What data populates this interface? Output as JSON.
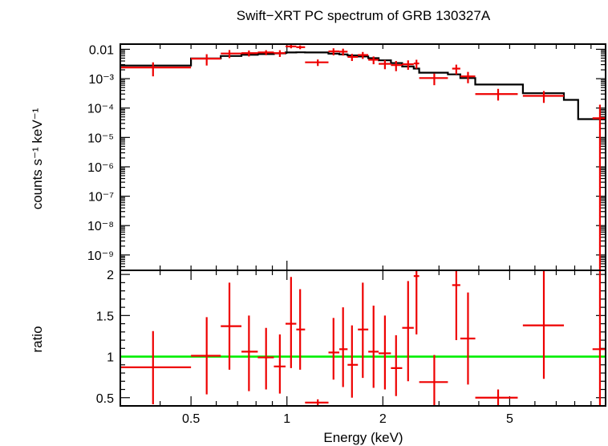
{
  "chart_data": [
    {
      "panel": "spectrum",
      "type": "scatter",
      "title": "Swift−XRT PC spectrum of GRB 130327A",
      "xlabel": "",
      "ylabel": "counts s⁻¹ keV⁻¹",
      "x_scale": "log",
      "y_scale": "log",
      "xlim": [
        0.3,
        10.0
      ],
      "ylim": [
        3e-10,
        0.015
      ],
      "y_ticks": [
        {
          "value": 0.01,
          "label": "0.01"
        },
        {
          "value": 0.001,
          "label": "10⁻³"
        },
        {
          "value": 0.0001,
          "label": "10⁻⁴"
        },
        {
          "value": 1e-05,
          "label": "10⁻⁵"
        },
        {
          "value": 1e-06,
          "label": "10⁻⁶"
        },
        {
          "value": 1e-07,
          "label": "10⁻⁷"
        },
        {
          "value": 1e-08,
          "label": "10⁻⁸"
        },
        {
          "value": 1e-09,
          "label": "10⁻⁹"
        }
      ],
      "series": [
        {
          "kind": "data",
          "color": "#ee0000",
          "points": [
            {
              "x": 0.38,
              "xlo": 0.3,
              "xhi": 0.5,
              "y": 0.0024,
              "ylo": 0.0012,
              "yhi": 0.0036
            },
            {
              "x": 0.56,
              "xlo": 0.5,
              "xhi": 0.62,
              "y": 0.0048,
              "ylo": 0.0028,
              "yhi": 0.0068
            },
            {
              "x": 0.66,
              "xlo": 0.62,
              "xhi": 0.72,
              "y": 0.0072,
              "ylo": 0.005,
              "yhi": 0.0094
            },
            {
              "x": 0.76,
              "xlo": 0.72,
              "xhi": 0.81,
              "y": 0.0074,
              "ylo": 0.0057,
              "yhi": 0.0091
            },
            {
              "x": 0.86,
              "xlo": 0.81,
              "xhi": 0.91,
              "y": 0.0078,
              "ylo": 0.0063,
              "yhi": 0.0093
            },
            {
              "x": 0.95,
              "xlo": 0.91,
              "xhi": 0.99,
              "y": 0.0074,
              "ylo": 0.0055,
              "yhi": 0.0093
            },
            {
              "x": 1.03,
              "xlo": 0.99,
              "xhi": 1.07,
              "y": 0.0125,
              "ylo": 0.0108,
              "yhi": 0.0142
            },
            {
              "x": 1.1,
              "xlo": 1.07,
              "xhi": 1.14,
              "y": 0.0118,
              "ylo": 0.0101,
              "yhi": 0.0135
            },
            {
              "x": 1.25,
              "xlo": 1.14,
              "xhi": 1.35,
              "y": 0.0036,
              "ylo": 0.0027,
              "yhi": 0.0045
            },
            {
              "x": 1.4,
              "xlo": 1.35,
              "xhi": 1.46,
              "y": 0.0085,
              "ylo": 0.0062,
              "yhi": 0.0108
            },
            {
              "x": 1.5,
              "xlo": 1.46,
              "xhi": 1.55,
              "y": 0.0083,
              "ylo": 0.0061,
              "yhi": 0.0105
            },
            {
              "x": 1.6,
              "xlo": 1.55,
              "xhi": 1.67,
              "y": 0.0055,
              "ylo": 0.004,
              "yhi": 0.007
            },
            {
              "x": 1.73,
              "xlo": 1.67,
              "xhi": 1.8,
              "y": 0.0064,
              "ylo": 0.0047,
              "yhi": 0.0081
            },
            {
              "x": 1.87,
              "xlo": 1.8,
              "xhi": 1.94,
              "y": 0.0044,
              "ylo": 0.0031,
              "yhi": 0.0057
            },
            {
              "x": 2.03,
              "xlo": 1.94,
              "xhi": 2.12,
              "y": 0.0032,
              "ylo": 0.0021,
              "yhi": 0.0043
            },
            {
              "x": 2.2,
              "xlo": 2.12,
              "xhi": 2.3,
              "y": 0.0029,
              "ylo": 0.0018,
              "yhi": 0.004
            },
            {
              "x": 2.4,
              "xlo": 2.3,
              "xhi": 2.5,
              "y": 0.0031,
              "ylo": 0.002,
              "yhi": 0.0042
            },
            {
              "x": 2.55,
              "xlo": 2.5,
              "xhi": 2.6,
              "y": 0.0033,
              "ylo": 0.0022,
              "yhi": 0.0044
            },
            {
              "x": 2.9,
              "xlo": 2.6,
              "xhi": 3.2,
              "y": 0.00105,
              "ylo": 0.0006,
              "yhi": 0.0015
            },
            {
              "x": 3.4,
              "xlo": 3.3,
              "xhi": 3.5,
              "y": 0.0022,
              "ylo": 0.0014,
              "yhi": 0.003
            },
            {
              "x": 3.7,
              "xlo": 3.5,
              "xhi": 3.9,
              "y": 0.0012,
              "ylo": 0.0007,
              "yhi": 0.0017
            },
            {
              "x": 4.6,
              "xlo": 3.9,
              "xhi": 5.3,
              "y": 0.0003,
              "ylo": 0.00018,
              "yhi": 0.00045
            },
            {
              "x": 6.4,
              "xlo": 5.5,
              "xhi": 7.4,
              "y": 0.00026,
              "ylo": 0.00015,
              "yhi": 0.00038
            },
            {
              "x": 9.6,
              "xlo": 9.1,
              "xhi": 10.0,
              "y": 4.5e-05,
              "ylo": 3e-10,
              "yhi": 0.00013
            }
          ]
        },
        {
          "kind": "model",
          "color": "#000000",
          "steps": [
            {
              "xlo": 0.3,
              "xhi": 0.5,
              "y": 0.0028
            },
            {
              "xlo": 0.5,
              "xhi": 0.62,
              "y": 0.0049
            },
            {
              "xlo": 0.62,
              "xhi": 0.72,
              "y": 0.0059
            },
            {
              "xlo": 0.72,
              "xhi": 0.81,
              "y": 0.0065
            },
            {
              "xlo": 0.81,
              "xhi": 0.91,
              "y": 0.0069
            },
            {
              "xlo": 0.91,
              "xhi": 0.99,
              "y": 0.0073
            },
            {
              "xlo": 0.99,
              "xhi": 1.07,
              "y": 0.0078
            },
            {
              "xlo": 1.07,
              "xhi": 1.14,
              "y": 0.0079
            },
            {
              "xlo": 1.14,
              "xhi": 1.35,
              "y": 0.0078
            },
            {
              "xlo": 1.35,
              "xhi": 1.46,
              "y": 0.0071
            },
            {
              "xlo": 1.46,
              "xhi": 1.55,
              "y": 0.0067
            },
            {
              "xlo": 1.55,
              "xhi": 1.67,
              "y": 0.0062
            },
            {
              "xlo": 1.67,
              "xhi": 1.8,
              "y": 0.0057
            },
            {
              "xlo": 1.8,
              "xhi": 1.94,
              "y": 0.005
            },
            {
              "xlo": 1.94,
              "xhi": 2.12,
              "y": 0.0042
            },
            {
              "xlo": 2.12,
              "xhi": 2.3,
              "y": 0.0034
            },
            {
              "xlo": 2.3,
              "xhi": 2.5,
              "y": 0.0026
            },
            {
              "xlo": 2.5,
              "xhi": 2.6,
              "y": 0.0022
            },
            {
              "xlo": 2.6,
              "xhi": 3.2,
              "y": 0.0016
            },
            {
              "xlo": 3.2,
              "xhi": 3.5,
              "y": 0.0014
            },
            {
              "xlo": 3.5,
              "xhi": 3.9,
              "y": 0.00105
            },
            {
              "xlo": 3.9,
              "xhi": 5.5,
              "y": 0.00063
            },
            {
              "xlo": 5.5,
              "xhi": 7.4,
              "y": 0.00032
            },
            {
              "xlo": 7.4,
              "xhi": 8.2,
              "y": 0.00019
            },
            {
              "xlo": 8.2,
              "xhi": 10.0,
              "y": 4.2e-05
            }
          ]
        }
      ]
    },
    {
      "panel": "ratio",
      "type": "scatter",
      "title": "",
      "xlabel": "Energy (keV)",
      "ylabel": "ratio",
      "x_scale": "log",
      "y_scale": "linear",
      "xlim": [
        0.3,
        10.0
      ],
      "ylim": [
        0.4,
        2.05
      ],
      "x_ticks": [
        {
          "value": 0.5,
          "label": "0.5"
        },
        {
          "value": 1,
          "label": "1"
        },
        {
          "value": 2,
          "label": "2"
        },
        {
          "value": 5,
          "label": "5"
        }
      ],
      "y_ticks": [
        {
          "value": 0.5,
          "label": "0.5"
        },
        {
          "value": 1,
          "label": "1"
        },
        {
          "value": 1.5,
          "label": "1.5"
        },
        {
          "value": 2,
          "label": "2"
        }
      ],
      "reference_line": {
        "y": 1.0,
        "color": "#00ee00"
      },
      "series": [
        {
          "kind": "data",
          "color": "#ee0000",
          "points": [
            {
              "x": 0.38,
              "xlo": 0.3,
              "xhi": 0.5,
              "y": 0.87,
              "ylo": 0.42,
              "yhi": 1.31
            },
            {
              "x": 0.56,
              "xlo": 0.5,
              "xhi": 0.62,
              "y": 1.01,
              "ylo": 0.54,
              "yhi": 1.48
            },
            {
              "x": 0.66,
              "xlo": 0.62,
              "xhi": 0.72,
              "y": 1.37,
              "ylo": 0.84,
              "yhi": 1.9
            },
            {
              "x": 0.76,
              "xlo": 0.72,
              "xhi": 0.81,
              "y": 1.06,
              "ylo": 0.58,
              "yhi": 1.5
            },
            {
              "x": 0.86,
              "xlo": 0.81,
              "xhi": 0.91,
              "y": 0.99,
              "ylo": 0.6,
              "yhi": 1.35
            },
            {
              "x": 0.95,
              "xlo": 0.91,
              "xhi": 0.99,
              "y": 0.88,
              "ylo": 0.55,
              "yhi": 1.27
            },
            {
              "x": 1.03,
              "xlo": 0.99,
              "xhi": 1.07,
              "y": 1.4,
              "ylo": 0.86,
              "yhi": 1.97
            },
            {
              "x": 1.1,
              "xlo": 1.07,
              "xhi": 1.14,
              "y": 1.33,
              "ylo": 0.84,
              "yhi": 1.82
            },
            {
              "x": 1.25,
              "xlo": 1.14,
              "xhi": 1.35,
              "y": 0.44,
              "ylo": 0.4,
              "yhi": 0.48
            },
            {
              "x": 1.4,
              "xlo": 1.35,
              "xhi": 1.46,
              "y": 1.05,
              "ylo": 0.72,
              "yhi": 1.47
            },
            {
              "x": 1.5,
              "xlo": 1.46,
              "xhi": 1.55,
              "y": 1.09,
              "ylo": 0.63,
              "yhi": 1.6
            },
            {
              "x": 1.6,
              "xlo": 1.55,
              "xhi": 1.67,
              "y": 0.9,
              "ylo": 0.5,
              "yhi": 1.38
            },
            {
              "x": 1.73,
              "xlo": 1.67,
              "xhi": 1.8,
              "y": 1.33,
              "ylo": 0.74,
              "yhi": 1.9
            },
            {
              "x": 1.87,
              "xlo": 1.8,
              "xhi": 1.94,
              "y": 1.06,
              "ylo": 0.62,
              "yhi": 1.62
            },
            {
              "x": 2.03,
              "xlo": 1.94,
              "xhi": 2.12,
              "y": 1.04,
              "ylo": 0.6,
              "yhi": 1.5
            },
            {
              "x": 2.2,
              "xlo": 2.12,
              "xhi": 2.3,
              "y": 0.86,
              "ylo": 0.52,
              "yhi": 1.26
            },
            {
              "x": 2.4,
              "xlo": 2.3,
              "xhi": 2.5,
              "y": 1.35,
              "ylo": 0.7,
              "yhi": 1.92
            },
            {
              "x": 2.55,
              "xlo": 2.5,
              "xhi": 2.6,
              "y": 1.98,
              "ylo": 1.27,
              "yhi": 2.05
            },
            {
              "x": 2.9,
              "xlo": 2.6,
              "xhi": 3.2,
              "y": 0.69,
              "ylo": 0.4,
              "yhi": 1.02
            },
            {
              "x": 3.4,
              "xlo": 3.3,
              "xhi": 3.5,
              "y": 1.87,
              "ylo": 1.2,
              "yhi": 2.05
            },
            {
              "x": 3.7,
              "xlo": 3.5,
              "xhi": 3.9,
              "y": 1.22,
              "ylo": 0.66,
              "yhi": 1.78
            },
            {
              "x": 4.6,
              "xlo": 3.9,
              "xhi": 5.3,
              "y": 0.5,
              "ylo": 0.4,
              "yhi": 0.6
            },
            {
              "x": 6.4,
              "xlo": 5.5,
              "xhi": 7.4,
              "y": 1.38,
              "ylo": 0.73,
              "yhi": 2.05
            },
            {
              "x": 9.6,
              "xlo": 9.1,
              "xhi": 10.0,
              "y": 1.09,
              "ylo": 0.4,
              "yhi": 2.05
            }
          ]
        }
      ]
    }
  ]
}
